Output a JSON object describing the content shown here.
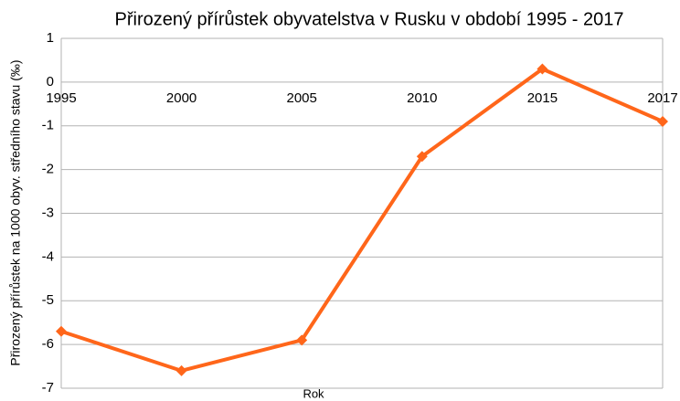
{
  "chart_data": {
    "type": "line",
    "title": "Přirozený přírůstek obyvatelstva v Rusku v období 1995 - 2017",
    "x_label": "Rok",
    "y_label": "Přirozený přírůstek na 1000 obyv. středního stavu (‰)",
    "categories": [
      "1995",
      "2000",
      "2005",
      "2010",
      "2015",
      "2017"
    ],
    "series": [
      {
        "name": "Přirozený přírůstek",
        "color": "#ff661a",
        "values": [
          -5.7,
          -6.6,
          -5.9,
          -1.7,
          0.3,
          -0.9
        ]
      }
    ],
    "ylim": [
      -7,
      1
    ],
    "yticks": [
      -7,
      -6,
      -5,
      -4,
      -3,
      -2,
      -1,
      0,
      1
    ],
    "grid": true
  }
}
